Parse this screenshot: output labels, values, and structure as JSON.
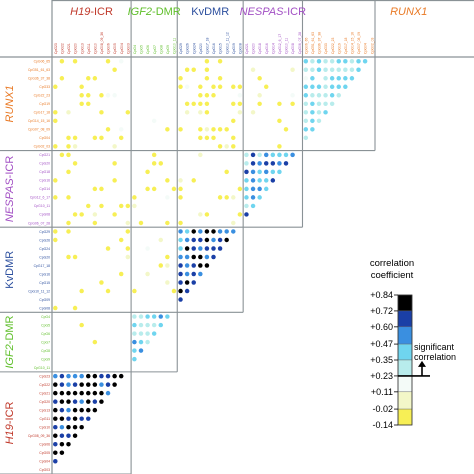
{
  "chart_data": {
    "type": "heatmap",
    "regions": [
      {
        "name": "H19-ICR",
        "italic_part": "H19",
        "suffix": "-ICR",
        "color": "#c0392b",
        "labels": [
          "CpG23",
          "CpG22",
          "CpG21",
          "CpG20",
          "CpG13",
          "CpG11",
          "CpG10",
          "CpG08_09_36",
          "CpG06",
          "CpG05",
          "CpG04",
          "CpG03"
        ]
      },
      {
        "name": "IGF2-DMR",
        "italic_part": "IGF2",
        "suffix": "-DMR",
        "color": "#5fbf2a",
        "labels": [
          "CpG4",
          "CpG5",
          "CpG6",
          "CpG7",
          "CpG8",
          "CpG9",
          "CpG10_11"
        ]
      },
      {
        "name": "KvDMR",
        "italic_part": "",
        "suffix": "KvDMR",
        "color": "#2c4f9e",
        "labels": [
          "CpG29",
          "CpG26",
          "CpG24",
          "CpG20",
          "CpG17_18",
          "CpG16",
          "CpG15",
          "CpG10_11_12",
          "CpG09",
          "CpG08"
        ]
      },
      {
        "name": "NESPAS-ICR",
        "italic_part": "NESPAS",
        "suffix": "-ICR",
        "color": "#a24fc4",
        "labels": [
          "CpG21",
          "CpG20",
          "CpG18",
          "CpG16",
          "CpG14",
          "CpG12_6_17",
          "CpG10_11",
          "CpG08",
          "CpG06_07_28"
        ]
      },
      {
        "name": "RUNX1",
        "italic_part": "RUNX1",
        "suffix": "",
        "color": "#e97a26",
        "labels": [
          "CpG06_65",
          "CpG51_61_63",
          "CpG36_37_38",
          "CpG33",
          "CpG22_23",
          "CpG19",
          "CpG17_18",
          "CpG14_15_16",
          "CpG07_08_09",
          "CpG04",
          "CpG02_03"
        ]
      }
    ],
    "scale": {
      "title": [
        "correlation",
        "coefficient"
      ],
      "significance_label": [
        "significant",
        "correlation"
      ],
      "ticks": [
        "+0.84",
        "+0.72",
        "+0.60",
        "+0.47",
        "+0.35",
        "+0.23",
        "+0.11",
        "-0.02",
        "-0.14"
      ],
      "tick_values": [
        0.84,
        0.72,
        0.6,
        0.47,
        0.35,
        0.23,
        0.11,
        -0.02,
        -0.14
      ],
      "band_colors": [
        "#000000",
        "#1a3fa6",
        "#3a8fe0",
        "#6fd5ef",
        "#b8ecec",
        "#f4fbf8",
        "#f3f7c8",
        "#f7ef55"
      ],
      "significance_threshold": 0.23
    },
    "legend": "right",
    "grid": true
  }
}
